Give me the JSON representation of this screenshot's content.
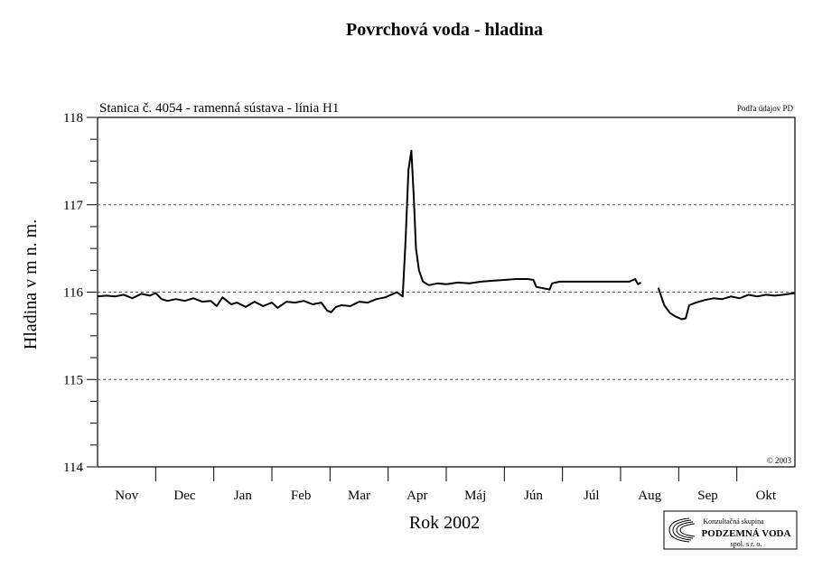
{
  "chart_data": {
    "type": "line",
    "title": "Povrchová voda - hladina",
    "subtitle": "Stanica č. 4054 - ramenná sústava - línia H1",
    "source_note": "Podľa údajov PD",
    "copyright": "© 2003",
    "ylabel": "Hladina v m n. m.",
    "xlabel": "Rok 2002",
    "ylim": [
      114,
      118
    ],
    "y_ticks": [
      "114",
      "115",
      "116",
      "117",
      "118"
    ],
    "y_gridlines": [
      115,
      116,
      117
    ],
    "grid": "horizontal dashed",
    "months": [
      "Nov",
      "Dec",
      "Jan",
      "Feb",
      "Mar",
      "Apr",
      "Máj",
      "Jún",
      "Júl",
      "Aug",
      "Sep",
      "Okt"
    ],
    "x_unit": "month index (0 = start of Nov, 12 = end of Okt)",
    "line_color": "#000000",
    "series": [
      {
        "values": [
          [
            0.0,
            115.95
          ],
          [
            0.15,
            115.96
          ],
          [
            0.3,
            115.95
          ],
          [
            0.45,
            115.97
          ],
          [
            0.6,
            115.93
          ],
          [
            0.75,
            115.98
          ],
          [
            0.9,
            115.96
          ],
          [
            1.0,
            115.99
          ],
          [
            1.1,
            115.92
          ],
          [
            1.2,
            115.9
          ],
          [
            1.35,
            115.92
          ],
          [
            1.5,
            115.9
          ],
          [
            1.65,
            115.93
          ],
          [
            1.8,
            115.89
          ],
          [
            1.95,
            115.9
          ],
          [
            2.05,
            115.84
          ],
          [
            2.15,
            115.94
          ],
          [
            2.3,
            115.86
          ],
          [
            2.4,
            115.88
          ],
          [
            2.55,
            115.83
          ],
          [
            2.7,
            115.89
          ],
          [
            2.85,
            115.84
          ],
          [
            3.0,
            115.88
          ],
          [
            3.1,
            115.82
          ],
          [
            3.25,
            115.89
          ],
          [
            3.4,
            115.88
          ],
          [
            3.55,
            115.9
          ],
          [
            3.7,
            115.86
          ],
          [
            3.85,
            115.88
          ],
          [
            3.95,
            115.79
          ],
          [
            4.02,
            115.77
          ],
          [
            4.1,
            115.83
          ],
          [
            4.2,
            115.85
          ],
          [
            4.35,
            115.84
          ],
          [
            4.5,
            115.89
          ],
          [
            4.65,
            115.88
          ],
          [
            4.8,
            115.92
          ],
          [
            4.95,
            115.94
          ],
          [
            5.05,
            115.97
          ],
          [
            5.15,
            116.0
          ],
          [
            5.25,
            115.95
          ],
          [
            5.3,
            116.6
          ],
          [
            5.35,
            117.4
          ],
          [
            5.4,
            117.62
          ],
          [
            5.44,
            117.1
          ],
          [
            5.48,
            116.5
          ],
          [
            5.53,
            116.25
          ],
          [
            5.6,
            116.12
          ],
          [
            5.7,
            116.08
          ],
          [
            5.85,
            116.1
          ],
          [
            6.0,
            116.09
          ],
          [
            6.2,
            116.11
          ],
          [
            6.4,
            116.1
          ],
          [
            6.6,
            116.12
          ],
          [
            6.8,
            116.13
          ],
          [
            7.0,
            116.14
          ],
          [
            7.2,
            116.15
          ],
          [
            7.4,
            116.15
          ],
          [
            7.5,
            116.14
          ],
          [
            7.55,
            116.06
          ],
          [
            7.7,
            116.04
          ],
          [
            7.78,
            116.03
          ],
          [
            7.82,
            116.1
          ],
          [
            7.95,
            116.12
          ],
          [
            8.2,
            116.12
          ],
          [
            8.5,
            116.12
          ],
          [
            8.8,
            116.12
          ],
          [
            9.0,
            116.12
          ],
          [
            9.15,
            116.12
          ],
          [
            9.25,
            116.15
          ],
          [
            9.3,
            116.09
          ],
          [
            9.35,
            116.11
          ],
          null,
          [
            9.65,
            116.05
          ],
          [
            9.75,
            115.85
          ],
          [
            9.85,
            115.76
          ],
          [
            9.95,
            115.72
          ],
          [
            10.05,
            115.69
          ],
          [
            10.12,
            115.7
          ],
          [
            10.18,
            115.85
          ],
          [
            10.3,
            115.88
          ],
          [
            10.45,
            115.91
          ],
          [
            10.6,
            115.93
          ],
          [
            10.75,
            115.92
          ],
          [
            10.9,
            115.95
          ],
          [
            11.05,
            115.93
          ],
          [
            11.2,
            115.97
          ],
          [
            11.35,
            115.95
          ],
          [
            11.5,
            115.97
          ],
          [
            11.65,
            115.96
          ],
          [
            11.8,
            115.97
          ],
          [
            12.0,
            115.99
          ]
        ]
      }
    ]
  },
  "logo": {
    "line1": "Konzultačná skupina",
    "line2": "PODZEMNÁ VODA",
    "line3": "spol. s r. o."
  }
}
